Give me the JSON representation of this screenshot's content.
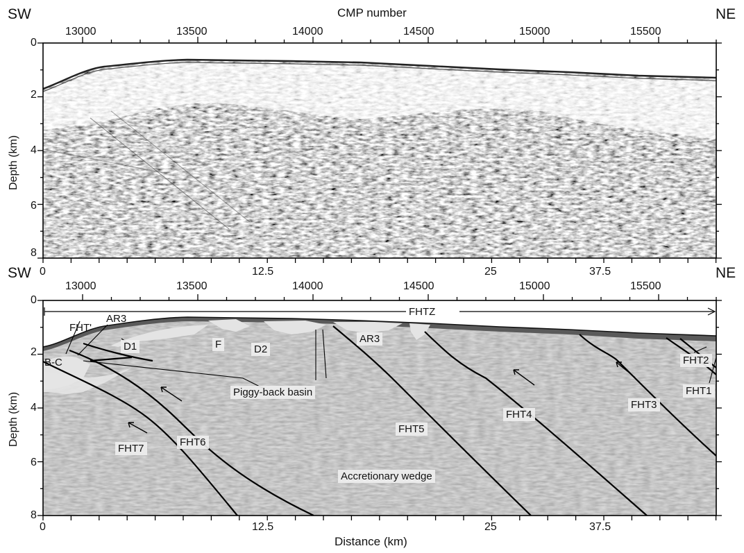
{
  "orientation": {
    "left": "SW",
    "right": "NE"
  },
  "top_panel": {
    "title": "CMP number",
    "cmp_ticks": [
      "13000",
      "13500",
      "14000",
      "14500",
      "15000",
      "15500"
    ],
    "depth_ticks": [
      "0",
      "2",
      "4",
      "6",
      "8"
    ],
    "ylabel": "Depth (km)",
    "distance_ticks": [
      "0",
      "12.5",
      "25",
      "37.5"
    ]
  },
  "bottom_panel": {
    "cmp_ticks": [
      "13000",
      "13500",
      "14000",
      "14500",
      "15000",
      "15500"
    ],
    "depth_ticks": [
      "0",
      "2",
      "4",
      "6",
      "8"
    ],
    "ylabel": "Depth (km)",
    "distance_ticks": [
      "0",
      "12.5",
      "25",
      "37.5"
    ],
    "xlabel": "Distance (km)",
    "zone_label": "FHTZ",
    "labels": {
      "fht_prime": "FHT'",
      "ar3_left": "AR3",
      "d1": "D1",
      "f": "F",
      "d2": "D2",
      "ar3_right": "AR3",
      "bc": "B-C",
      "piggyback": "Piggy-back basin",
      "fht7": "FHT7",
      "fht6": "FHT6",
      "fht5": "FHT5",
      "fht4": "FHT4",
      "fht3": "FHT3",
      "fht2": "FHT2",
      "fht1": "FHT1",
      "wedge": "Accretionary wedge"
    }
  },
  "colors": {
    "section_gray": "#8f8f8f",
    "seafloor_dark": "#5a5a5a",
    "basin_fill": "#e4e4e4",
    "fault_line": "#000000"
  }
}
